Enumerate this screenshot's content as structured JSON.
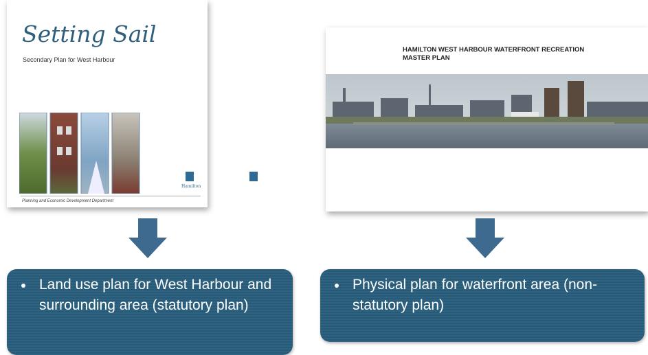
{
  "left_document": {
    "title": "Setting Sail",
    "subtitle": "Secondary Plan for West Harbour",
    "footer": "Planning and Economic Development Department",
    "logo": "Hamilton"
  },
  "right_document": {
    "title": "HAMILTON WEST HARBOUR WATERFRONT RECREATION MASTER PLAN"
  },
  "callouts": [
    {
      "text": "Land use plan for West Harbour and surrounding area (statutory plan)"
    },
    {
      "text": "Physical plan for waterfront area (non-statutory plan)"
    }
  ]
}
